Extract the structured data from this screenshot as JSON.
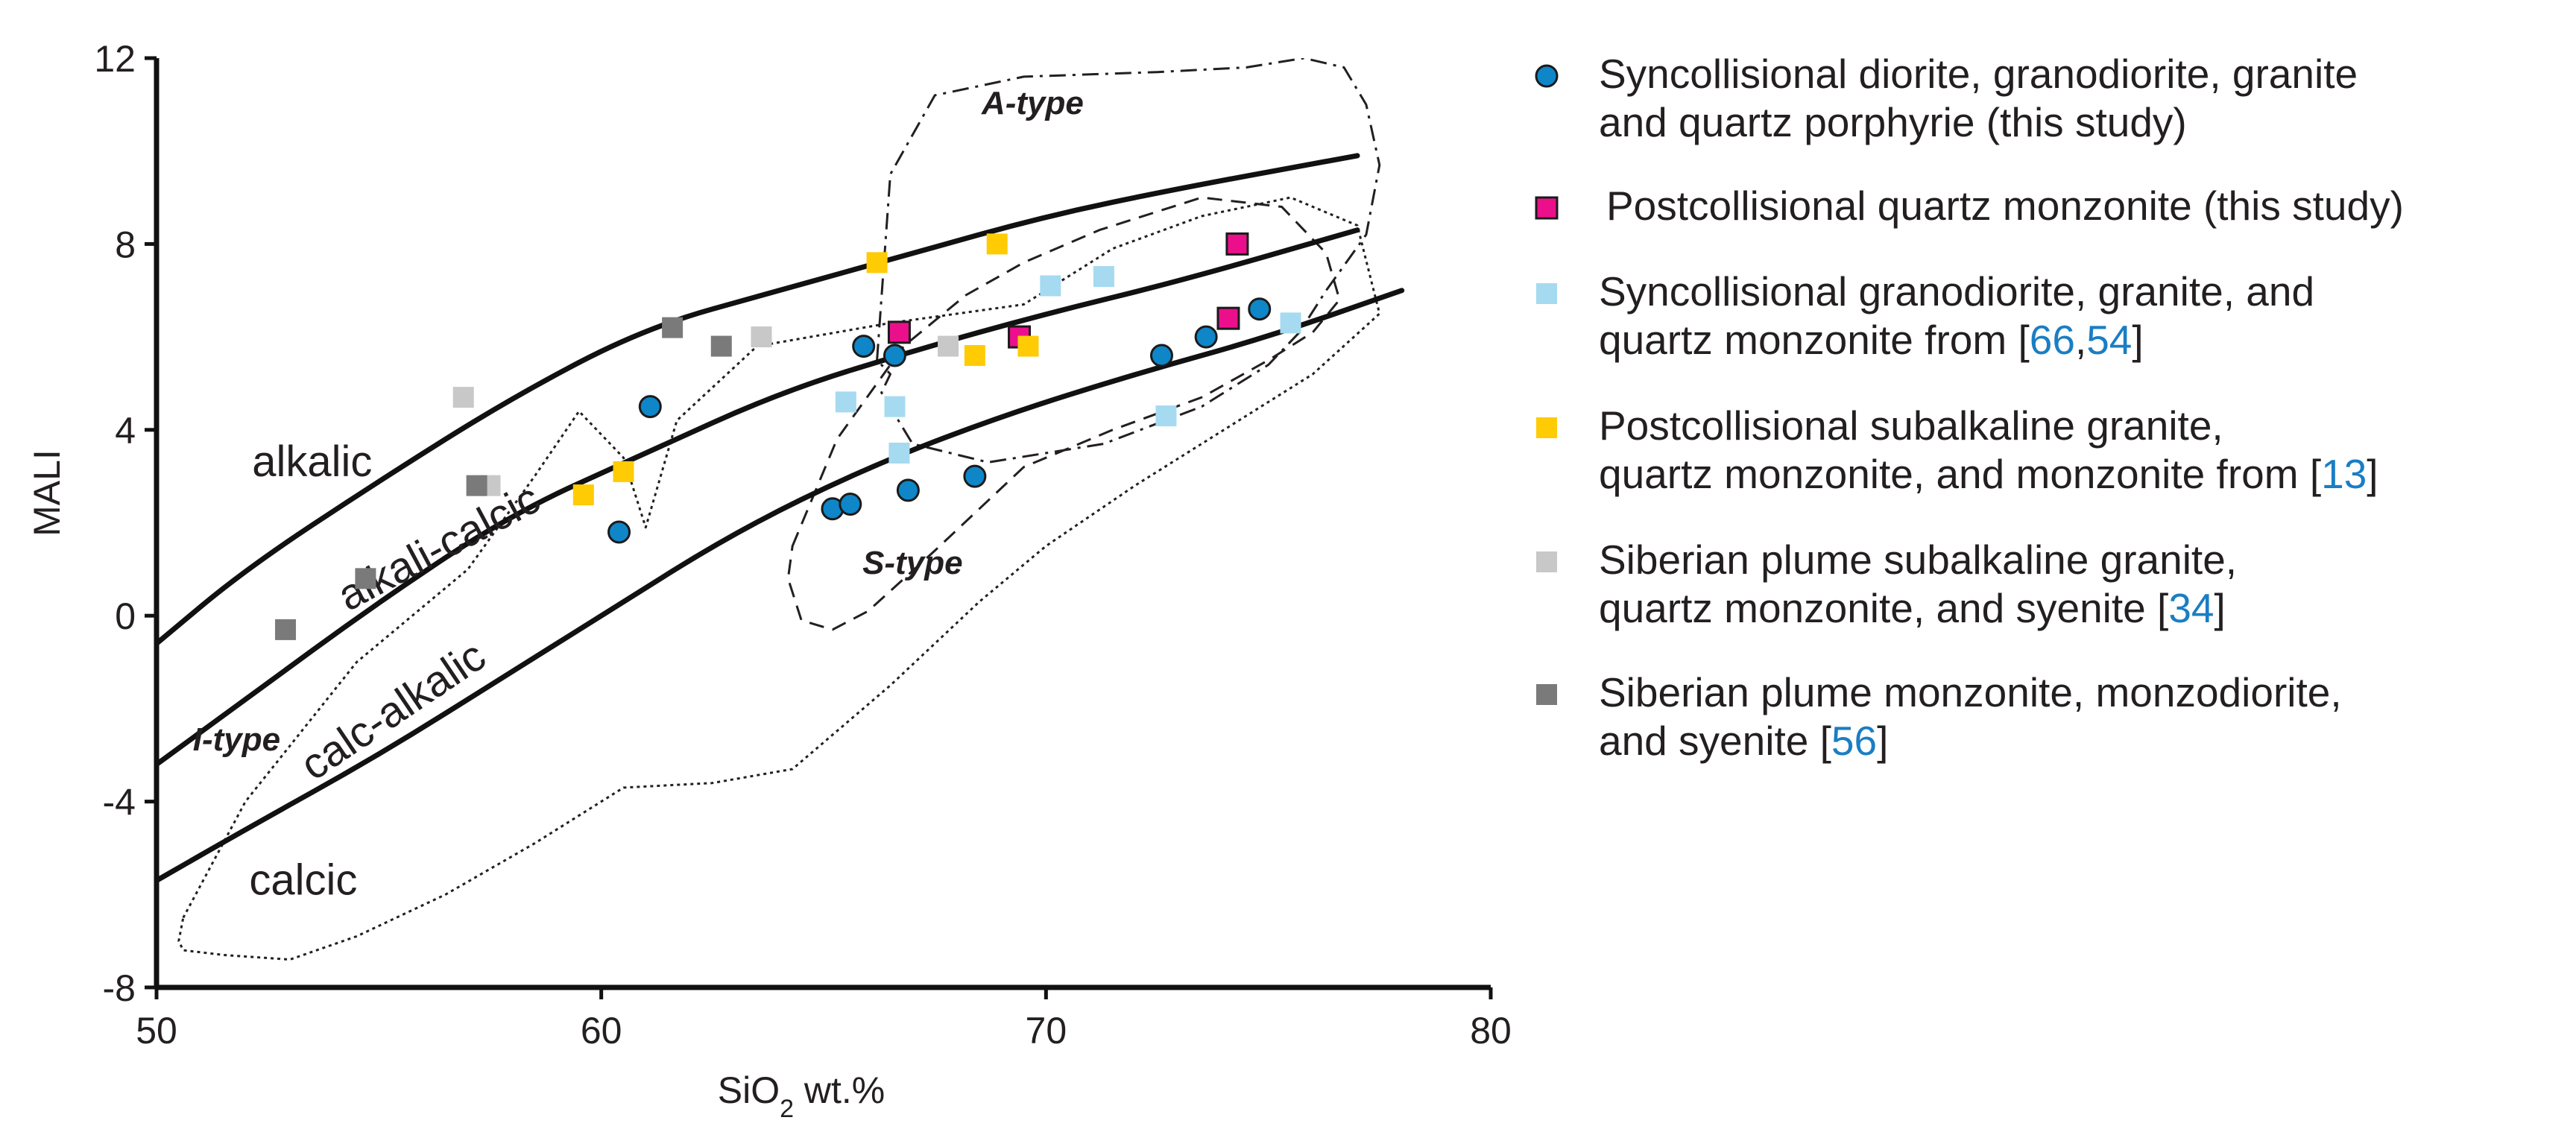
{
  "chart_data": {
    "type": "scatter",
    "xlabel": "SiO2 wt.%",
    "xlabel_main": "SiO",
    "xlabel_sub": "2",
    "xlabel_tail": " wt.%",
    "ylabel": "MALI",
    "xlim": [
      50,
      80
    ],
    "ylim": [
      -8,
      12
    ],
    "xticks": [
      "50",
      "60",
      "70",
      "80"
    ],
    "yticks": [
      "12",
      "8",
      "4",
      "0",
      "-4",
      "-8"
    ],
    "grid": false,
    "legend_position": "right",
    "boundaries": [
      {
        "name": "alkalic / alkali-calcic",
        "x": [
          50,
          52,
          55,
          58,
          61,
          64,
          67,
          70,
          73,
          77
        ],
        "y": [
          -0.6,
          1.0,
          2.9,
          4.7,
          6.2,
          7.0,
          7.8,
          8.6,
          9.2,
          9.9
        ]
      },
      {
        "name": "alkali-calcic / calc-alkalic",
        "x": [
          50,
          52,
          55,
          58,
          61,
          64,
          67,
          70,
          73,
          77
        ],
        "y": [
          -3.2,
          -1.8,
          0.3,
          2.2,
          3.5,
          4.8,
          5.7,
          6.5,
          7.2,
          8.3
        ]
      },
      {
        "name": "calc-alkalic / calcic",
        "x": [
          50,
          52,
          55,
          58,
          60,
          63,
          66,
          69,
          72,
          75,
          78
        ],
        "y": [
          -5.7,
          -4.6,
          -3.0,
          -1.2,
          0.0,
          1.8,
          3.2,
          4.3,
          5.2,
          6.0,
          7.0
        ]
      }
    ],
    "fields": [
      {
        "name": "alkalic",
        "label": "alkalic",
        "x": 53.5,
        "y": 3.0,
        "angle": 0
      },
      {
        "name": "alkali-calcic",
        "label": "alkali-calcic",
        "x": 56.5,
        "y": 1.2,
        "angle": -28
      },
      {
        "name": "calc-alkalic",
        "label": "calc-alkalic",
        "x": 55.5,
        "y": -2.3,
        "angle": -34
      },
      {
        "name": "calcic",
        "label": "calcic",
        "x": 53.3,
        "y": -6.0,
        "angle": 0
      }
    ],
    "type_fields": [
      {
        "name": "A-type",
        "label": "A-type",
        "x": 69.7,
        "y": 10.8,
        "style": "dashdot",
        "outline": {
          "x": [
            66.2,
            66.5,
            67.5,
            69.5,
            72.5,
            74.5,
            75.8,
            76.7,
            77.2,
            77.5,
            77.2,
            76.3,
            75.7,
            75.0,
            73.5,
            71.3,
            68.7,
            67.0,
            66.3,
            66.5,
            66.2
          ],
          "y": [
            5.5,
            9.5,
            11.2,
            11.6,
            11.7,
            11.8,
            12.0,
            11.8,
            11.0,
            9.7,
            8.2,
            7.0,
            6.1,
            5.4,
            4.5,
            3.7,
            3.3,
            3.7,
            4.8,
            5.2,
            5.5
          ]
        }
      },
      {
        "name": "S-type",
        "label": "S-type",
        "x": 67.0,
        "y": 0.9,
        "style": "dashed",
        "outline": {
          "x": [
            64.3,
            65.3,
            66.8,
            68.2,
            69.5,
            71.2,
            73.5,
            75.3,
            76.3,
            76.6,
            76.0,
            75.0,
            73.5,
            71.5,
            69.5,
            67.5,
            66.0,
            65.2,
            64.5,
            64.2,
            64.3
          ],
          "y": [
            1.5,
            3.8,
            5.8,
            6.9,
            7.6,
            8.3,
            9.0,
            8.8,
            7.8,
            6.8,
            6.1,
            5.5,
            4.7,
            4.0,
            3.2,
            1.4,
            0.1,
            -0.3,
            -0.1,
            0.8,
            1.5
          ]
        }
      },
      {
        "name": "I-type",
        "label": "I-type",
        "x": 51.8,
        "y": -2.9,
        "style": "dotted",
        "outline": {
          "x": [
            50.6,
            52.0,
            54.5,
            57.0,
            58.5,
            59.5,
            60.5,
            61.0,
            61.7,
            63.5,
            66.5,
            69.5,
            71.5,
            73.5,
            75.5,
            77.0,
            77.5,
            76.0,
            74.0,
            72.0,
            70.0,
            68.5,
            66.5,
            64.3,
            62.5,
            60.5,
            58.5,
            56.5,
            54.5,
            53.0,
            51.5,
            50.6,
            50.5,
            50.6
          ],
          "y": [
            -6.5,
            -4.0,
            -1.0,
            1.0,
            3.0,
            4.4,
            3.4,
            1.9,
            4.2,
            5.8,
            6.3,
            6.7,
            7.9,
            8.6,
            9.0,
            8.4,
            6.5,
            5.2,
            4.0,
            2.8,
            1.5,
            0.3,
            -1.5,
            -3.3,
            -3.6,
            -3.7,
            -4.9,
            -6.0,
            -6.9,
            -7.4,
            -7.3,
            -7.2,
            -7.0,
            -6.5
          ]
        }
      }
    ],
    "series": [
      {
        "name": "Syncollisional diorite, granodiorite, granite and quartz porphyrie (this study)",
        "marker": "circle",
        "color": "#0e86c8",
        "x": [
          60.4,
          61.1,
          65.2,
          65.6,
          65.9,
          66.6,
          66.9,
          68.4,
          72.6,
          73.6,
          74.8
        ],
        "y": [
          1.8,
          4.5,
          2.3,
          2.4,
          5.8,
          5.6,
          2.7,
          3.0,
          5.6,
          6.0,
          6.6
        ]
      },
      {
        "name": "Postcollisional quartz monzonite (this study)",
        "marker": "square",
        "color": "#ec0f8c",
        "x": [
          66.7,
          69.4,
          74.1,
          74.3
        ],
        "y": [
          6.1,
          6.0,
          6.4,
          8.0
        ]
      },
      {
        "name": "Syncollisional granodiorite, granite, and quartz monzonite from [66,54]",
        "marker": "square",
        "color": "#a6daf0",
        "x": [
          65.5,
          66.6,
          66.7,
          70.1,
          71.3,
          72.7,
          75.5
        ],
        "y": [
          4.6,
          4.5,
          3.5,
          7.1,
          7.3,
          4.3,
          6.3
        ]
      },
      {
        "name": "Postcollisional subalkaline granite, quartz monzonite, and monzonite from [13]",
        "marker": "square",
        "color": "#ffcb05",
        "x": [
          59.6,
          60.5,
          66.2,
          68.4,
          68.9,
          69.6
        ],
        "y": [
          2.6,
          3.1,
          7.6,
          5.6,
          8.0,
          5.8
        ]
      },
      {
        "name": "Siberian plume subalkaline granite, quartz monzonite, and syenite [34]",
        "marker": "square",
        "color": "#c8c8c8",
        "x": [
          56.9,
          57.5,
          63.6,
          67.8
        ],
        "y": [
          4.7,
          2.8,
          6.0,
          5.8
        ]
      },
      {
        "name": "Siberian plume monzonite, monzodiorite, and syenite [56]",
        "marker": "square",
        "color": "#7a7a7a",
        "x": [
          52.9,
          54.7,
          57.2,
          61.6,
          62.7
        ],
        "y": [
          -0.3,
          0.8,
          2.8,
          6.2,
          5.8
        ]
      }
    ]
  },
  "legend": [
    {
      "lines": [
        {
          "text": "Syncollisional diorite, granodiorite, granite"
        },
        {
          "text": "and quartz porphyrie (this study)"
        }
      ]
    },
    {
      "lines": [
        {
          "text": "Postcollisional quartz monzonite (this study)"
        }
      ]
    },
    {
      "lines": [
        {
          "text": "Syncollisional granodiorite, granite, and"
        },
        {
          "text": "quartz monzonite from [",
          "r1": "66",
          "mid": ",",
          "r2": "54",
          "end": "]"
        }
      ]
    },
    {
      "lines": [
        {
          "text": "Postcollisional subalkaline granite,"
        },
        {
          "text": "quartz monzonite, and monzonite from [",
          "r1": "13",
          "end": "]"
        }
      ]
    },
    {
      "lines": [
        {
          "text": "Siberian plume subalkaline granite,"
        },
        {
          "text": "quartz monzonite, and syenite [",
          "r1": "34",
          "end": "]"
        }
      ]
    },
    {
      "lines": [
        {
          "text": "Siberian plume monzonite, monzodiorite,"
        },
        {
          "text": "and syenite [",
          "r1": "56",
          "end": "]"
        }
      ]
    }
  ]
}
